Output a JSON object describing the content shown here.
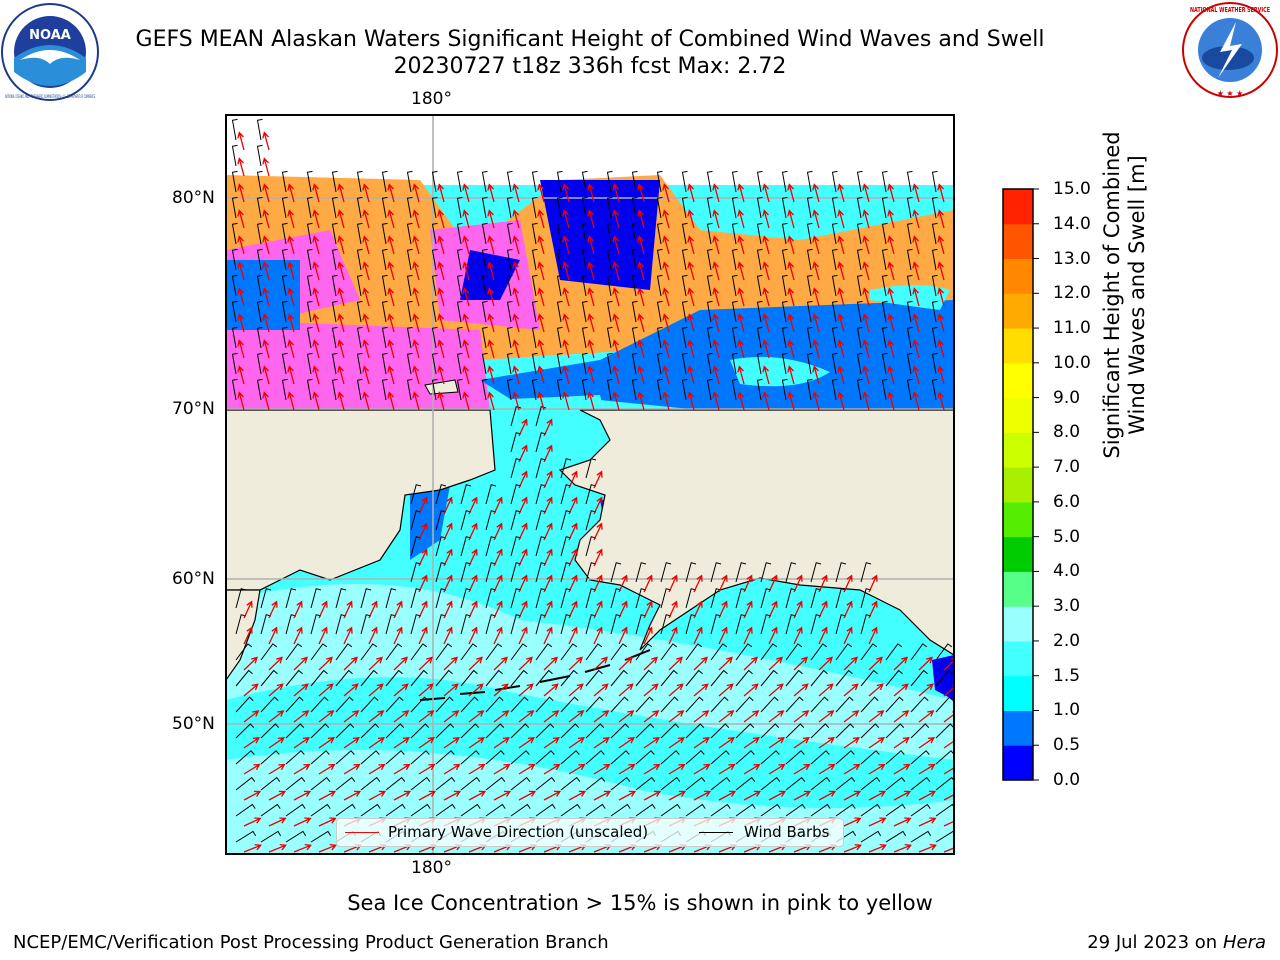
{
  "header": {
    "title_line1": "GEFS MEAN Alaskan Waters Significant Height of Combined Wind Waves and Swell",
    "title_line2": "20230727 t18z 336h fcst   Max: 2.72"
  },
  "logos": {
    "noaa_text": "NOAA",
    "noaa_ring_text": "NATIONAL OCEANIC AND ATMOSPHERIC ADMINISTRATION · U.S. DEPARTMENT OF COMMERCE",
    "nws_ring_text": "NATIONAL WEATHER SERVICE"
  },
  "map": {
    "lon_labels": [
      "180°",
      "180°"
    ],
    "lat_labels": [
      "80°N",
      "70°N",
      "60°N",
      "50°N"
    ],
    "legend": {
      "wave_direction": "Primary Wave Direction (unscaled)",
      "wind_barbs": "Wind Barbs"
    },
    "colors": {
      "land": "#efecdc",
      "ice_pink": "#ff66ee",
      "ice_orange": "#ffaa44",
      "wave_arrow": "#ff0000",
      "wind_barb": "#000000"
    }
  },
  "colorbar": {
    "label_line1": "Significant Height of Combined",
    "label_line2": "Wind Waves and Swell [m]",
    "ticks": [
      "0.0",
      "0.5",
      "1.0",
      "1.5",
      "2.0",
      "3.0",
      "4.0",
      "5.0",
      "6.0",
      "7.0",
      "8.0",
      "9.0",
      "10.0",
      "11.0",
      "12.0",
      "13.0",
      "14.0",
      "15.0"
    ],
    "colors": [
      "#0000ff",
      "#0077ff",
      "#00ffff",
      "#44ffff",
      "#99ffff",
      "#55ff88",
      "#00cc00",
      "#55ee00",
      "#aaee00",
      "#ccff00",
      "#eeff00",
      "#ffff00",
      "#ffdd00",
      "#ffaa00",
      "#ff8800",
      "#ff5500",
      "#ff2200",
      "#ff0000"
    ]
  },
  "note": "Sea Ice Concentration > 15% is shown in pink to yellow",
  "footer": {
    "left": "NCEP/EMC/Verification Post Processing Product Generation Branch",
    "right_date": "29 Jul 2023 on ",
    "right_machine": "Hera"
  }
}
